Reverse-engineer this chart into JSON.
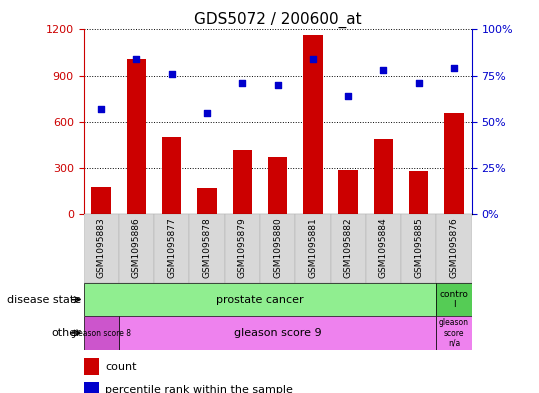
{
  "title": "GDS5072 / 200600_at",
  "categories": [
    "GSM1095883",
    "GSM1095886",
    "GSM1095877",
    "GSM1095878",
    "GSM1095879",
    "GSM1095880",
    "GSM1095881",
    "GSM1095882",
    "GSM1095884",
    "GSM1095885",
    "GSM1095876"
  ],
  "bar_values": [
    175,
    1010,
    500,
    170,
    420,
    370,
    1165,
    290,
    490,
    280,
    660
  ],
  "scatter_values": [
    57,
    84,
    76,
    55,
    71,
    70,
    84,
    64,
    78,
    71,
    79
  ],
  "bar_color": "#cc0000",
  "scatter_color": "#0000cc",
  "left_ylim": [
    0,
    1200
  ],
  "right_ylim": [
    0,
    100
  ],
  "left_yticks": [
    0,
    300,
    600,
    900,
    1200
  ],
  "right_yticks": [
    0,
    25,
    50,
    75,
    100
  ],
  "right_yticklabels": [
    "0%",
    "25%",
    "50%",
    "75%",
    "100%"
  ],
  "plot_bg": "#ffffff",
  "tick_bg": "#d8d8d8",
  "legend_count_color": "#cc0000",
  "legend_scatter_color": "#0000cc",
  "disease_green_light": "#90EE90",
  "disease_green_dark": "#55cc55",
  "gleason_purple_light": "#EE82EE",
  "gleason_purple_dark": "#CC55CC"
}
